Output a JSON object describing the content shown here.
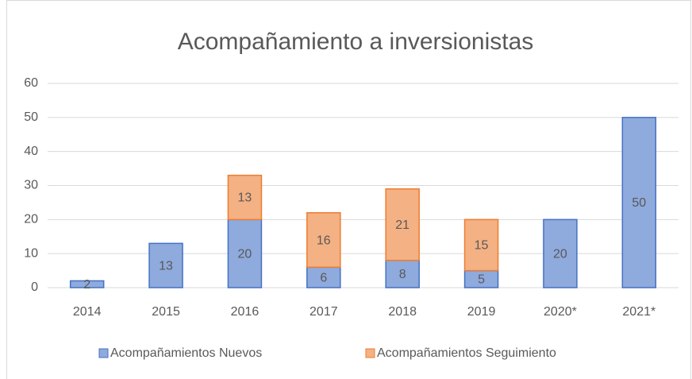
{
  "chart_data": {
    "type": "stacked_bar",
    "title": "Acompañamiento a inversionistas",
    "categories": [
      "2014",
      "2015",
      "2016",
      "2017",
      "2018",
      "2019",
      "2020*",
      "2021*"
    ],
    "series": [
      {
        "name": "Acompañamientos Nuevos",
        "color": "#8faadc",
        "values": [
          2,
          13,
          20,
          6,
          8,
          5,
          20,
          50
        ]
      },
      {
        "name": "Acompañamientos Seguimiento",
        "color": "#f4b183",
        "values": [
          null,
          null,
          13,
          16,
          21,
          15,
          null,
          null
        ]
      }
    ],
    "ylim": [
      0,
      60
    ],
    "yticks": [
      0,
      10,
      20,
      30,
      40,
      50,
      60
    ],
    "grid": true,
    "legend": "bottom"
  }
}
